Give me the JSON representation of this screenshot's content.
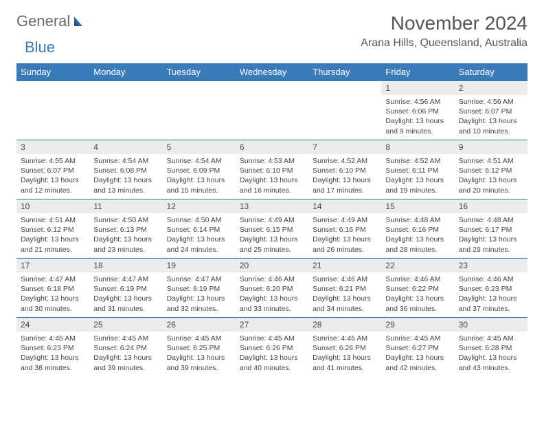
{
  "logo": {
    "part1": "General",
    "part2": "Blue"
  },
  "colors": {
    "header_bg": "#3a7ab8",
    "header_text": "#ffffff",
    "daynum_bg": "#ececec",
    "text": "#444444",
    "border": "#3a7ab8",
    "logo_gray": "#6a6a6a",
    "logo_blue": "#3a7ab8"
  },
  "title": "November 2024",
  "location": "Arana Hills, Queensland, Australia",
  "day_headers": [
    "Sunday",
    "Monday",
    "Tuesday",
    "Wednesday",
    "Thursday",
    "Friday",
    "Saturday"
  ],
  "weeks": [
    [
      {
        "num": "",
        "sunrise": "",
        "sunset": "",
        "daylight": ""
      },
      {
        "num": "",
        "sunrise": "",
        "sunset": "",
        "daylight": ""
      },
      {
        "num": "",
        "sunrise": "",
        "sunset": "",
        "daylight": ""
      },
      {
        "num": "",
        "sunrise": "",
        "sunset": "",
        "daylight": ""
      },
      {
        "num": "",
        "sunrise": "",
        "sunset": "",
        "daylight": ""
      },
      {
        "num": "1",
        "sunrise": "Sunrise: 4:56 AM",
        "sunset": "Sunset: 6:06 PM",
        "daylight": "Daylight: 13 hours and 9 minutes."
      },
      {
        "num": "2",
        "sunrise": "Sunrise: 4:56 AM",
        "sunset": "Sunset: 6:07 PM",
        "daylight": "Daylight: 13 hours and 10 minutes."
      }
    ],
    [
      {
        "num": "3",
        "sunrise": "Sunrise: 4:55 AM",
        "sunset": "Sunset: 6:07 PM",
        "daylight": "Daylight: 13 hours and 12 minutes."
      },
      {
        "num": "4",
        "sunrise": "Sunrise: 4:54 AM",
        "sunset": "Sunset: 6:08 PM",
        "daylight": "Daylight: 13 hours and 13 minutes."
      },
      {
        "num": "5",
        "sunrise": "Sunrise: 4:54 AM",
        "sunset": "Sunset: 6:09 PM",
        "daylight": "Daylight: 13 hours and 15 minutes."
      },
      {
        "num": "6",
        "sunrise": "Sunrise: 4:53 AM",
        "sunset": "Sunset: 6:10 PM",
        "daylight": "Daylight: 13 hours and 16 minutes."
      },
      {
        "num": "7",
        "sunrise": "Sunrise: 4:52 AM",
        "sunset": "Sunset: 6:10 PM",
        "daylight": "Daylight: 13 hours and 17 minutes."
      },
      {
        "num": "8",
        "sunrise": "Sunrise: 4:52 AM",
        "sunset": "Sunset: 6:11 PM",
        "daylight": "Daylight: 13 hours and 19 minutes."
      },
      {
        "num": "9",
        "sunrise": "Sunrise: 4:51 AM",
        "sunset": "Sunset: 6:12 PM",
        "daylight": "Daylight: 13 hours and 20 minutes."
      }
    ],
    [
      {
        "num": "10",
        "sunrise": "Sunrise: 4:51 AM",
        "sunset": "Sunset: 6:12 PM",
        "daylight": "Daylight: 13 hours and 21 minutes."
      },
      {
        "num": "11",
        "sunrise": "Sunrise: 4:50 AM",
        "sunset": "Sunset: 6:13 PM",
        "daylight": "Daylight: 13 hours and 23 minutes."
      },
      {
        "num": "12",
        "sunrise": "Sunrise: 4:50 AM",
        "sunset": "Sunset: 6:14 PM",
        "daylight": "Daylight: 13 hours and 24 minutes."
      },
      {
        "num": "13",
        "sunrise": "Sunrise: 4:49 AM",
        "sunset": "Sunset: 6:15 PM",
        "daylight": "Daylight: 13 hours and 25 minutes."
      },
      {
        "num": "14",
        "sunrise": "Sunrise: 4:49 AM",
        "sunset": "Sunset: 6:16 PM",
        "daylight": "Daylight: 13 hours and 26 minutes."
      },
      {
        "num": "15",
        "sunrise": "Sunrise: 4:48 AM",
        "sunset": "Sunset: 6:16 PM",
        "daylight": "Daylight: 13 hours and 28 minutes."
      },
      {
        "num": "16",
        "sunrise": "Sunrise: 4:48 AM",
        "sunset": "Sunset: 6:17 PM",
        "daylight": "Daylight: 13 hours and 29 minutes."
      }
    ],
    [
      {
        "num": "17",
        "sunrise": "Sunrise: 4:47 AM",
        "sunset": "Sunset: 6:18 PM",
        "daylight": "Daylight: 13 hours and 30 minutes."
      },
      {
        "num": "18",
        "sunrise": "Sunrise: 4:47 AM",
        "sunset": "Sunset: 6:19 PM",
        "daylight": "Daylight: 13 hours and 31 minutes."
      },
      {
        "num": "19",
        "sunrise": "Sunrise: 4:47 AM",
        "sunset": "Sunset: 6:19 PM",
        "daylight": "Daylight: 13 hours and 32 minutes."
      },
      {
        "num": "20",
        "sunrise": "Sunrise: 4:46 AM",
        "sunset": "Sunset: 6:20 PM",
        "daylight": "Daylight: 13 hours and 33 minutes."
      },
      {
        "num": "21",
        "sunrise": "Sunrise: 4:46 AM",
        "sunset": "Sunset: 6:21 PM",
        "daylight": "Daylight: 13 hours and 34 minutes."
      },
      {
        "num": "22",
        "sunrise": "Sunrise: 4:46 AM",
        "sunset": "Sunset: 6:22 PM",
        "daylight": "Daylight: 13 hours and 36 minutes."
      },
      {
        "num": "23",
        "sunrise": "Sunrise: 4:46 AM",
        "sunset": "Sunset: 6:23 PM",
        "daylight": "Daylight: 13 hours and 37 minutes."
      }
    ],
    [
      {
        "num": "24",
        "sunrise": "Sunrise: 4:45 AM",
        "sunset": "Sunset: 6:23 PM",
        "daylight": "Daylight: 13 hours and 38 minutes."
      },
      {
        "num": "25",
        "sunrise": "Sunrise: 4:45 AM",
        "sunset": "Sunset: 6:24 PM",
        "daylight": "Daylight: 13 hours and 39 minutes."
      },
      {
        "num": "26",
        "sunrise": "Sunrise: 4:45 AM",
        "sunset": "Sunset: 6:25 PM",
        "daylight": "Daylight: 13 hours and 39 minutes."
      },
      {
        "num": "27",
        "sunrise": "Sunrise: 4:45 AM",
        "sunset": "Sunset: 6:26 PM",
        "daylight": "Daylight: 13 hours and 40 minutes."
      },
      {
        "num": "28",
        "sunrise": "Sunrise: 4:45 AM",
        "sunset": "Sunset: 6:26 PM",
        "daylight": "Daylight: 13 hours and 41 minutes."
      },
      {
        "num": "29",
        "sunrise": "Sunrise: 4:45 AM",
        "sunset": "Sunset: 6:27 PM",
        "daylight": "Daylight: 13 hours and 42 minutes."
      },
      {
        "num": "30",
        "sunrise": "Sunrise: 4:45 AM",
        "sunset": "Sunset: 6:28 PM",
        "daylight": "Daylight: 13 hours and 43 minutes."
      }
    ]
  ]
}
